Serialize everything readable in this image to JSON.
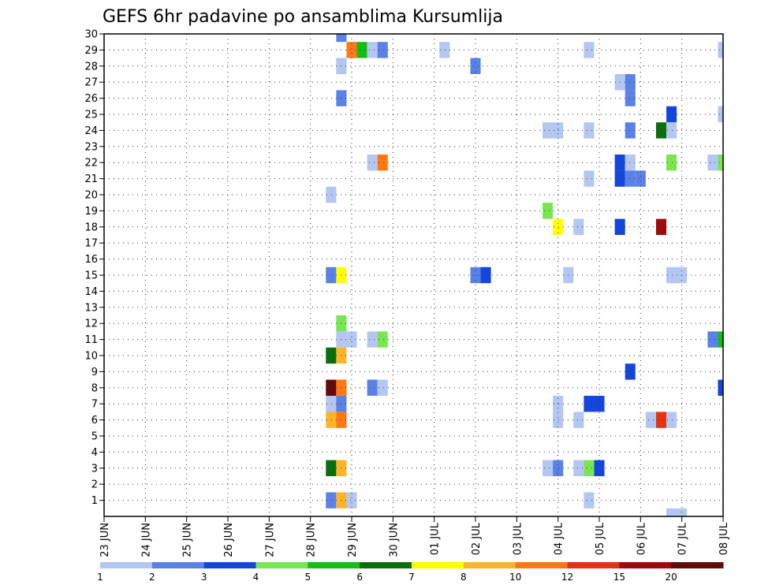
{
  "chart_data": {
    "type": "heatmap",
    "title": "GEFS 6hr padavine po ansamblima Kursumlija",
    "x_tick_labels": [
      "23 JUN",
      "24 JUN",
      "25 JUN",
      "26 JUN",
      "27 JUN",
      "28 JUN",
      "29 JUN",
      "30 JUN",
      "01 JUL",
      "02 JUL",
      "03 JUL",
      "04 JUL",
      "05 JUL",
      "06 JUL",
      "07 JUL",
      "08 JUL"
    ],
    "y_tick_labels": [
      "1",
      "2",
      "3",
      "4",
      "5",
      "6",
      "7",
      "8",
      "9",
      "10",
      "11",
      "12",
      "13",
      "14",
      "15",
      "16",
      "17",
      "18",
      "19",
      "20",
      "21",
      "22",
      "23",
      "24",
      "25",
      "26",
      "27",
      "28",
      "29",
      "30"
    ],
    "x_range_days": [
      0,
      15
    ],
    "y_range": [
      0,
      30
    ],
    "grid": true,
    "colorbar": {
      "labels": [
        "1",
        "2",
        "3",
        "4",
        "5",
        "6",
        "7",
        "8",
        "10",
        "12",
        "15",
        "20"
      ],
      "colors": [
        "#b4c7f2",
        "#5a82e6",
        "#1446dc",
        "#78e650",
        "#14be14",
        "#0a6e0a",
        "#ffff00",
        "#ffb428",
        "#ff7814",
        "#e63214",
        "#a00a0a",
        "#640a0a"
      ]
    },
    "cells": [
      {
        "t": 5.75,
        "m": 30,
        "v": 2
      },
      {
        "t": 6.0,
        "m": 29,
        "v": 10
      },
      {
        "t": 6.25,
        "m": 29,
        "v": 5
      },
      {
        "t": 6.5,
        "m": 29,
        "v": 1
      },
      {
        "t": 6.75,
        "m": 29,
        "v": 2
      },
      {
        "t": 8.25,
        "m": 29,
        "v": 1
      },
      {
        "t": 11.75,
        "m": 29,
        "v": 1
      },
      {
        "t": 15.0,
        "m": 29,
        "v": 1
      },
      {
        "t": 5.75,
        "m": 28,
        "v": 1
      },
      {
        "t": 9.0,
        "m": 28,
        "v": 2
      },
      {
        "t": 12.5,
        "m": 27,
        "v": 1
      },
      {
        "t": 12.75,
        "m": 27,
        "v": 2
      },
      {
        "t": 5.75,
        "m": 26,
        "v": 2
      },
      {
        "t": 12.75,
        "m": 26,
        "v": 2
      },
      {
        "t": 13.75,
        "m": 25,
        "v": 3
      },
      {
        "t": 15.0,
        "m": 25,
        "v": 1
      },
      {
        "t": 10.75,
        "m": 24,
        "v": 1
      },
      {
        "t": 11.0,
        "m": 24,
        "v": 1
      },
      {
        "t": 11.75,
        "m": 24,
        "v": 1
      },
      {
        "t": 12.75,
        "m": 24,
        "v": 2
      },
      {
        "t": 13.5,
        "m": 24,
        "v": 6
      },
      {
        "t": 13.75,
        "m": 24,
        "v": 1
      },
      {
        "t": 6.5,
        "m": 22,
        "v": 1
      },
      {
        "t": 6.75,
        "m": 22,
        "v": 10
      },
      {
        "t": 12.5,
        "m": 22,
        "v": 3
      },
      {
        "t": 12.75,
        "m": 22,
        "v": 1
      },
      {
        "t": 13.75,
        "m": 22,
        "v": 4
      },
      {
        "t": 14.75,
        "m": 22,
        "v": 1
      },
      {
        "t": 15.0,
        "m": 22,
        "v": 4
      },
      {
        "t": 11.75,
        "m": 21,
        "v": 1
      },
      {
        "t": 12.5,
        "m": 21,
        "v": 3
      },
      {
        "t": 12.75,
        "m": 21,
        "v": 2
      },
      {
        "t": 13.0,
        "m": 21,
        "v": 2
      },
      {
        "t": 5.5,
        "m": 20,
        "v": 1
      },
      {
        "t": 10.75,
        "m": 19,
        "v": 4
      },
      {
        "t": 11.0,
        "m": 18,
        "v": 7
      },
      {
        "t": 11.5,
        "m": 18,
        "v": 1
      },
      {
        "t": 12.5,
        "m": 18,
        "v": 3
      },
      {
        "t": 13.5,
        "m": 18,
        "v": 15
      },
      {
        "t": 5.5,
        "m": 15,
        "v": 2
      },
      {
        "t": 5.75,
        "m": 15,
        "v": 7
      },
      {
        "t": 9.0,
        "m": 15,
        "v": 2
      },
      {
        "t": 9.25,
        "m": 15,
        "v": 3
      },
      {
        "t": 11.25,
        "m": 15,
        "v": 1
      },
      {
        "t": 13.75,
        "m": 15,
        "v": 1
      },
      {
        "t": 14.0,
        "m": 15,
        "v": 1
      },
      {
        "t": 5.75,
        "m": 12,
        "v": 4
      },
      {
        "t": 5.75,
        "m": 11,
        "v": 1
      },
      {
        "t": 6.0,
        "m": 11,
        "v": 1
      },
      {
        "t": 6.5,
        "m": 11,
        "v": 1
      },
      {
        "t": 6.75,
        "m": 11,
        "v": 4
      },
      {
        "t": 14.75,
        "m": 11,
        "v": 2
      },
      {
        "t": 15.0,
        "m": 11,
        "v": 5
      },
      {
        "t": 5.5,
        "m": 10,
        "v": 6
      },
      {
        "t": 5.75,
        "m": 10,
        "v": 8
      },
      {
        "t": 12.75,
        "m": 9,
        "v": 3
      },
      {
        "t": 5.5,
        "m": 8,
        "v": 20
      },
      {
        "t": 5.75,
        "m": 8,
        "v": 10
      },
      {
        "t": 6.5,
        "m": 8,
        "v": 2
      },
      {
        "t": 6.75,
        "m": 8,
        "v": 1
      },
      {
        "t": 15.0,
        "m": 8,
        "v": 3
      },
      {
        "t": 5.5,
        "m": 7,
        "v": 1
      },
      {
        "t": 5.75,
        "m": 7,
        "v": 2
      },
      {
        "t": 11.0,
        "m": 7,
        "v": 1
      },
      {
        "t": 11.75,
        "m": 7,
        "v": 3
      },
      {
        "t": 12.0,
        "m": 7,
        "v": 3
      },
      {
        "t": 5.5,
        "m": 6,
        "v": 8
      },
      {
        "t": 5.75,
        "m": 6,
        "v": 10
      },
      {
        "t": 11.0,
        "m": 6,
        "v": 1
      },
      {
        "t": 11.5,
        "m": 6,
        "v": 1
      },
      {
        "t": 13.25,
        "m": 6,
        "v": 1
      },
      {
        "t": 13.5,
        "m": 6,
        "v": 12
      },
      {
        "t": 13.75,
        "m": 6,
        "v": 1
      },
      {
        "t": 5.5,
        "m": 3,
        "v": 6
      },
      {
        "t": 5.75,
        "m": 3,
        "v": 8
      },
      {
        "t": 10.75,
        "m": 3,
        "v": 1
      },
      {
        "t": 11.0,
        "m": 3,
        "v": 2
      },
      {
        "t": 11.5,
        "m": 3,
        "v": 1
      },
      {
        "t": 11.75,
        "m": 3,
        "v": 4
      },
      {
        "t": 12.0,
        "m": 3,
        "v": 3
      },
      {
        "t": 5.5,
        "m": 1,
        "v": 2
      },
      {
        "t": 5.75,
        "m": 1,
        "v": 8
      },
      {
        "t": 6.0,
        "m": 1,
        "v": 1
      },
      {
        "t": 11.75,
        "m": 1,
        "v": 1
      },
      {
        "t": 13.75,
        "m": 0,
        "v": 1
      },
      {
        "t": 14.0,
        "m": 0,
        "v": 1
      }
    ]
  }
}
